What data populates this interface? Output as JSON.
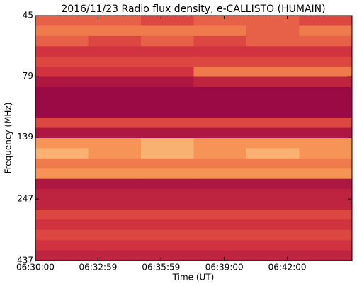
{
  "chart_data": {
    "type": "heatmap",
    "title": "2016/11/23  Radio flux density, e-CALLISTO (HUMAIN)",
    "x_label": "Time (UT)",
    "y_label": "Frequency (MHz)",
    "xlim": [
      23400,
      24305
    ],
    "xticks": [
      {
        "value": 23400,
        "label": "06:30:00"
      },
      {
        "value": 23579,
        "label": "06:32:59"
      },
      {
        "value": 23759,
        "label": "06:35:59"
      },
      {
        "value": 23940,
        "label": "06:39:00"
      },
      {
        "value": 24120,
        "label": "06:42:00"
      }
    ],
    "ylim": [
      45,
      437
    ],
    "yticks": [
      45,
      79,
      139,
      247,
      437
    ],
    "y_log": true,
    "y_inverted": true,
    "zlim": [
      0,
      10
    ],
    "colorscale": [
      "#9b0a44",
      "#d6363e",
      "#f58b4f",
      "#fde9a4"
    ],
    "z": [
      [
        5,
        5,
        4,
        5,
        5,
        4
      ],
      [
        6,
        6,
        6,
        6,
        5,
        6
      ],
      [
        5,
        4,
        5,
        4,
        5,
        5
      ],
      [
        3,
        3,
        3,
        3,
        3,
        3
      ],
      [
        4,
        4,
        4,
        4,
        4,
        4
      ],
      [
        3,
        3,
        3,
        6,
        6,
        6
      ],
      [
        1,
        1,
        1,
        2,
        2,
        2
      ],
      [
        0,
        0,
        0,
        0,
        0,
        0
      ],
      [
        0,
        0,
        0,
        0,
        0,
        0
      ],
      [
        0,
        0,
        0,
        0,
        0,
        0
      ],
      [
        4,
        4,
        4,
        4,
        4,
        4
      ],
      [
        1,
        1,
        1,
        1,
        1,
        1
      ],
      [
        7,
        7,
        8,
        7,
        7,
        7
      ],
      [
        8,
        7,
        8,
        7,
        8,
        7
      ],
      [
        6,
        6,
        6,
        6,
        6,
        6
      ],
      [
        7,
        7,
        7,
        7,
        7,
        7
      ],
      [
        1,
        1,
        1,
        1,
        1,
        1
      ],
      [
        2,
        2,
        2,
        2,
        2,
        2
      ],
      [
        2,
        2,
        2,
        2,
        2,
        2
      ],
      [
        4,
        4,
        4,
        4,
        4,
        4
      ],
      [
        3,
        3,
        3,
        3,
        3,
        3
      ],
      [
        4,
        4,
        4,
        4,
        4,
        4
      ],
      [
        3,
        3,
        3,
        3,
        3,
        3
      ],
      [
        2,
        2,
        2,
        2,
        2,
        2
      ]
    ]
  }
}
